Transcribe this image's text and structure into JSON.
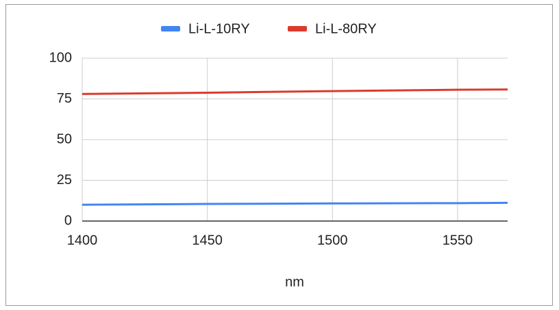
{
  "chart_data": {
    "type": "line",
    "x_label": "nm",
    "x": [
      1400,
      1450,
      1500,
      1550,
      1570
    ],
    "series": [
      {
        "name": "Li-L-10RY",
        "color": "#4285f4",
        "values": [
          10,
          10.5,
          10.8,
          11,
          11.2
        ]
      },
      {
        "name": "Li-L-80RY",
        "color": "#db3b2c",
        "values": [
          78,
          78.8,
          79.8,
          80.6,
          80.8
        ]
      }
    ],
    "xlim": [
      1400,
      1570
    ],
    "xticks": [
      1400,
      1450,
      1500,
      1550
    ],
    "ylim": [
      0,
      100
    ],
    "yticks": [
      0,
      25,
      50,
      75,
      100
    ],
    "grid": true,
    "legend": "top"
  }
}
